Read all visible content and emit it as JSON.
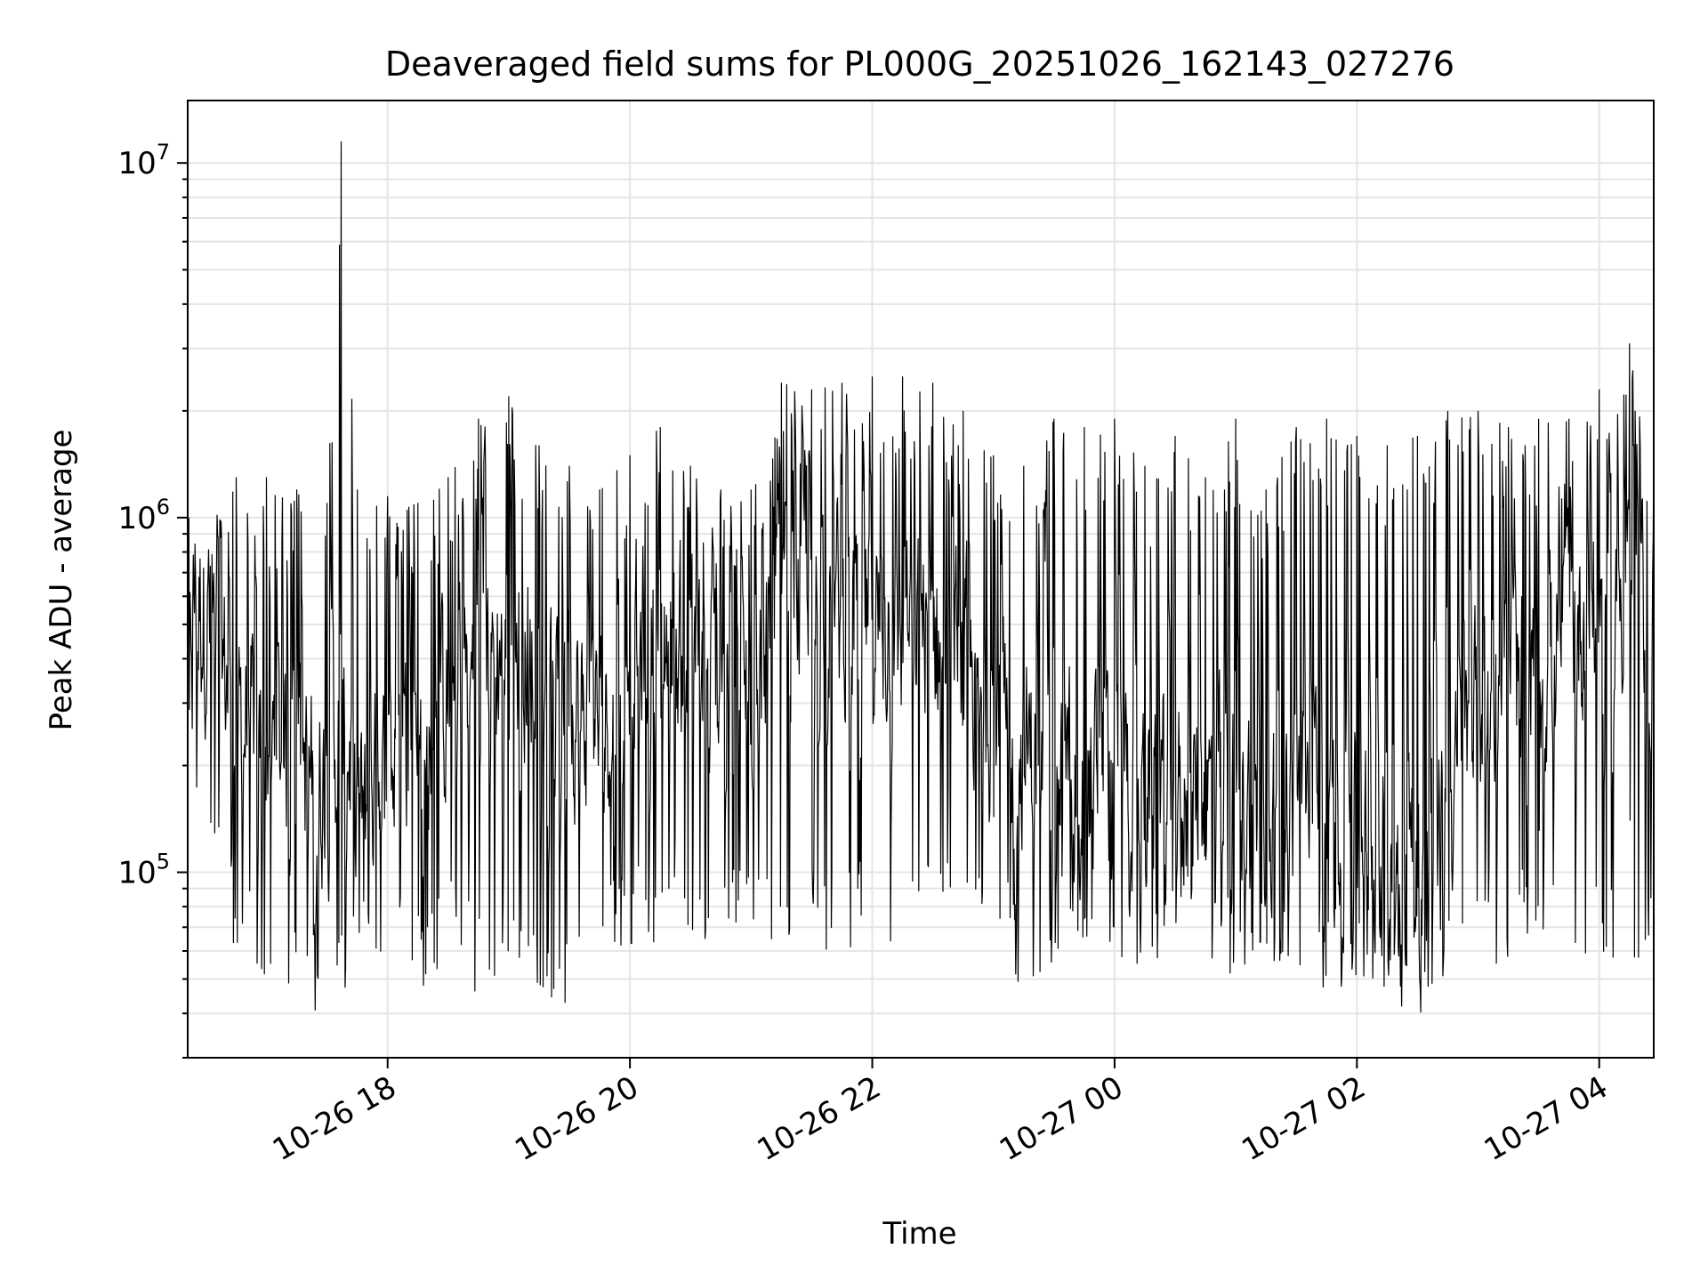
{
  "chart_data": {
    "type": "line",
    "title": "Deaveraged field sums for PL000G_20251026_162143_027276",
    "xlabel": "Time",
    "ylabel": "Peak ADU - average",
    "yscale": "log",
    "ylim": [
      30000,
      15000000
    ],
    "xlim": [
      "2025-10-26 16:21",
      "2025-10-27 04:27"
    ],
    "grid": true,
    "x_ticks": [
      {
        "t": "2025-10-26 18:00",
        "label": "10-26 18"
      },
      {
        "t": "2025-10-26 20:00",
        "label": "10-26 20"
      },
      {
        "t": "2025-10-26 22:00",
        "label": "10-26 22"
      },
      {
        "t": "2025-10-27 00:00",
        "label": "10-27 00"
      },
      {
        "t": "2025-10-27 02:00",
        "label": "10-27 02"
      },
      {
        "t": "2025-10-27 04:00",
        "label": "10-27 04"
      }
    ],
    "y_ticks": [
      {
        "value": 100000,
        "base": "10",
        "exp": "5"
      },
      {
        "value": 1000000,
        "base": "10",
        "exp": "6"
      },
      {
        "value": 10000000,
        "base": "10",
        "exp": "7"
      }
    ],
    "series": [
      {
        "color": "#000000",
        "x": [
          "2025-10-26 16:21",
          "2025-10-26 16:45",
          "2025-10-26 17:00",
          "2025-10-26 17:15",
          "2025-10-26 17:30",
          "2025-10-26 17:37",
          "2025-10-26 17:45",
          "2025-10-26 18:00",
          "2025-10-26 18:15",
          "2025-10-26 18:30",
          "2025-10-26 18:45",
          "2025-10-26 19:00",
          "2025-10-26 19:15",
          "2025-10-26 19:30",
          "2025-10-26 19:45",
          "2025-10-26 20:00",
          "2025-10-26 20:15",
          "2025-10-26 20:30",
          "2025-10-26 20:45",
          "2025-10-26 21:00",
          "2025-10-26 21:15",
          "2025-10-26 21:30",
          "2025-10-26 21:45",
          "2025-10-26 22:00",
          "2025-10-26 22:15",
          "2025-10-26 22:30",
          "2025-10-26 22:45",
          "2025-10-26 23:00",
          "2025-10-26 23:15",
          "2025-10-26 23:30",
          "2025-10-26 23:45",
          "2025-10-27 00:00",
          "2025-10-27 00:15",
          "2025-10-27 00:30",
          "2025-10-27 00:45",
          "2025-10-27 01:00",
          "2025-10-27 01:15",
          "2025-10-27 01:30",
          "2025-10-27 01:45",
          "2025-10-27 02:00",
          "2025-10-27 02:15",
          "2025-10-27 02:30",
          "2025-10-27 02:45",
          "2025-10-27 03:00",
          "2025-10-27 03:15",
          "2025-10-27 03:30",
          "2025-10-27 03:45",
          "2025-10-27 04:00",
          "2025-10-27 04:15",
          "2025-10-27 04:27"
        ],
        "upper": [
          1000000,
          1300000,
          1300000,
          1200000,
          1100000,
          11500000,
          1200000,
          1150000,
          1100000,
          1300000,
          1900000,
          2200000,
          1600000,
          1400000,
          1200000,
          1500000,
          1800000,
          1400000,
          1200000,
          1200000,
          2400000,
          2300000,
          2400000,
          2500000,
          2500000,
          2400000,
          2000000,
          1500000,
          1400000,
          1900000,
          1800000,
          1900000,
          1400000,
          1700000,
          1300000,
          1900000,
          1200000,
          1800000,
          1900000,
          1700000,
          1600000,
          1700000,
          2000000,
          2000000,
          1800000,
          1900000,
          1900000,
          2300000,
          3100000,
          1600000
        ],
        "lower": [
          180000,
          55000,
          50000,
          45000,
          38000,
          40000,
          55000,
          60000,
          45000,
          55000,
          45000,
          50000,
          48000,
          38000,
          60000,
          58000,
          60000,
          58000,
          55000,
          70000,
          58000,
          60000,
          55000,
          65000,
          58000,
          65000,
          60000,
          65000,
          42000,
          55000,
          60000,
          55000,
          50000,
          50000,
          50000,
          50000,
          50000,
          48000,
          45000,
          48000,
          45000,
          38000,
          45000,
          55000,
          55000,
          60000,
          55000,
          60000,
          48000,
          60000
        ],
        "typical": [
          700000,
          300000,
          250000,
          200000,
          180000,
          300000,
          160000,
          180000,
          250000,
          300000,
          400000,
          450000,
          400000,
          300000,
          250000,
          450000,
          500000,
          400000,
          350000,
          350000,
          600000,
          650000,
          550000,
          500000,
          450000,
          500000,
          400000,
          250000,
          220000,
          200000,
          200000,
          180000,
          180000,
          170000,
          170000,
          170000,
          150000,
          150000,
          150000,
          130000,
          120000,
          120000,
          130000,
          300000,
          350000,
          350000,
          450000,
          600000,
          650000,
          500000
        ]
      }
    ]
  }
}
